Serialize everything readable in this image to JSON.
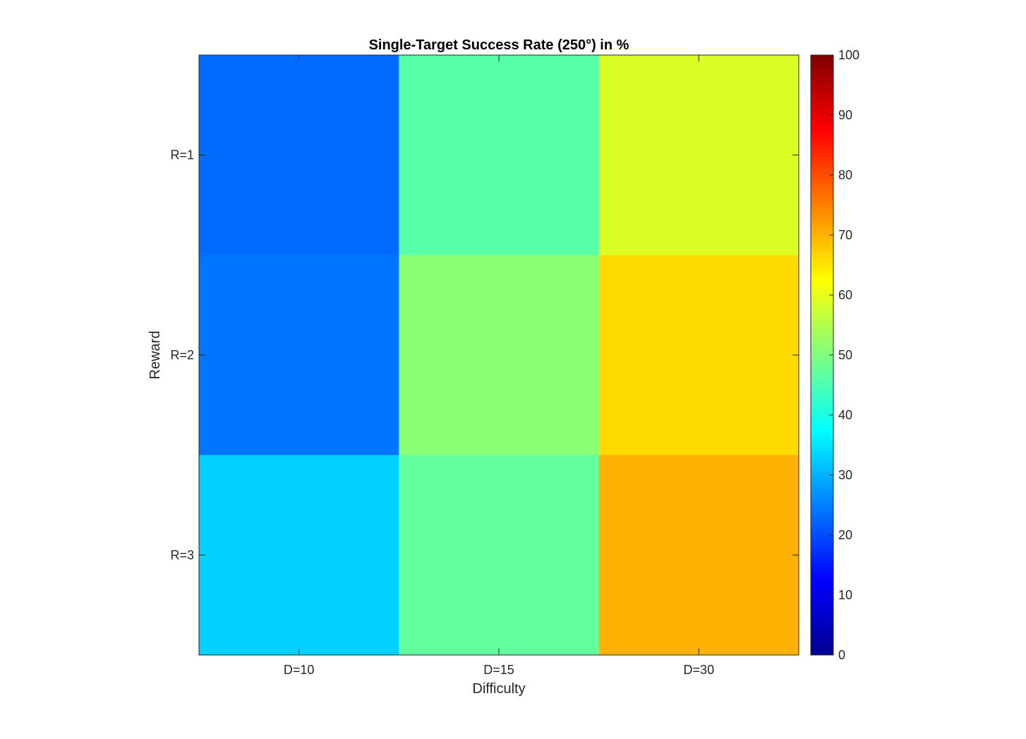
{
  "chart_data": {
    "type": "heatmap",
    "title": "Single-Target Success Rate (250°) in %",
    "xlabel": "Difficulty",
    "ylabel": "Reward",
    "x_categories": [
      "D=10",
      "D=15",
      "D=30"
    ],
    "y_categories": [
      "R=1",
      "R=2",
      "R=3"
    ],
    "values": [
      [
        23,
        46,
        59
      ],
      [
        24,
        51,
        66
      ],
      [
        33,
        47,
        70
      ]
    ],
    "colormap": "jet",
    "color_range": [
      0,
      100
    ],
    "colorbar_ticks": [
      0,
      10,
      20,
      30,
      40,
      50,
      60,
      70,
      80,
      90,
      100
    ],
    "grid": false,
    "colorbar_placement": "right"
  }
}
